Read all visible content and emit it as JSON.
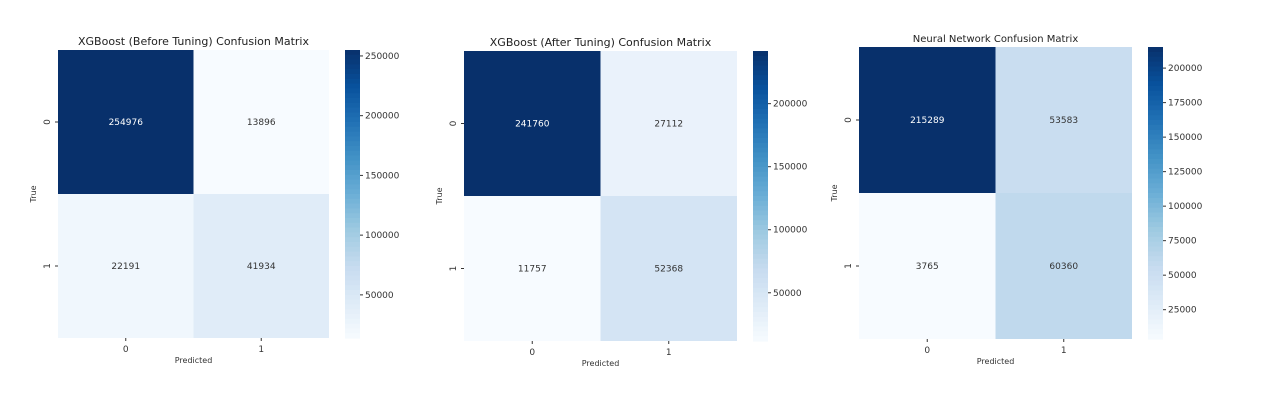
{
  "chart_data": [
    {
      "type": "heatmap",
      "title": "XGBoost (Before Tuning) Confusion Matrix",
      "xlabel": "Predicted",
      "ylabel": "True",
      "x_categories": [
        "0",
        "1"
      ],
      "y_categories": [
        "0",
        "1"
      ],
      "values": [
        [
          254976,
          13896
        ],
        [
          22191,
          41934
        ]
      ],
      "colormap": "Blues",
      "colorbar_range": [
        13896,
        254976
      ],
      "colorbar_ticks": [
        50000,
        100000,
        150000,
        200000,
        250000
      ],
      "grid": false
    },
    {
      "type": "heatmap",
      "title": "XGBoost (After Tuning) Confusion Matrix",
      "xlabel": "Predicted",
      "ylabel": "True",
      "x_categories": [
        "0",
        "1"
      ],
      "y_categories": [
        "0",
        "1"
      ],
      "values": [
        [
          241760,
          27112
        ],
        [
          11757,
          52368
        ]
      ],
      "colormap": "Blues",
      "colorbar_range": [
        11757,
        241760
      ],
      "colorbar_ticks": [
        50000,
        100000,
        150000,
        200000
      ],
      "grid": false
    },
    {
      "type": "heatmap",
      "title": "Neural Network Confusion Matrix",
      "xlabel": "Predicted",
      "ylabel": "True",
      "x_categories": [
        "0",
        "1"
      ],
      "y_categories": [
        "0",
        "1"
      ],
      "values": [
        [
          215289,
          53583
        ],
        [
          3765,
          60360
        ]
      ],
      "colormap": "Blues",
      "colorbar_range": [
        3765,
        215289
      ],
      "colorbar_ticks": [
        25000,
        50000,
        75000,
        100000,
        125000,
        150000,
        175000,
        200000
      ],
      "grid": false
    }
  ]
}
